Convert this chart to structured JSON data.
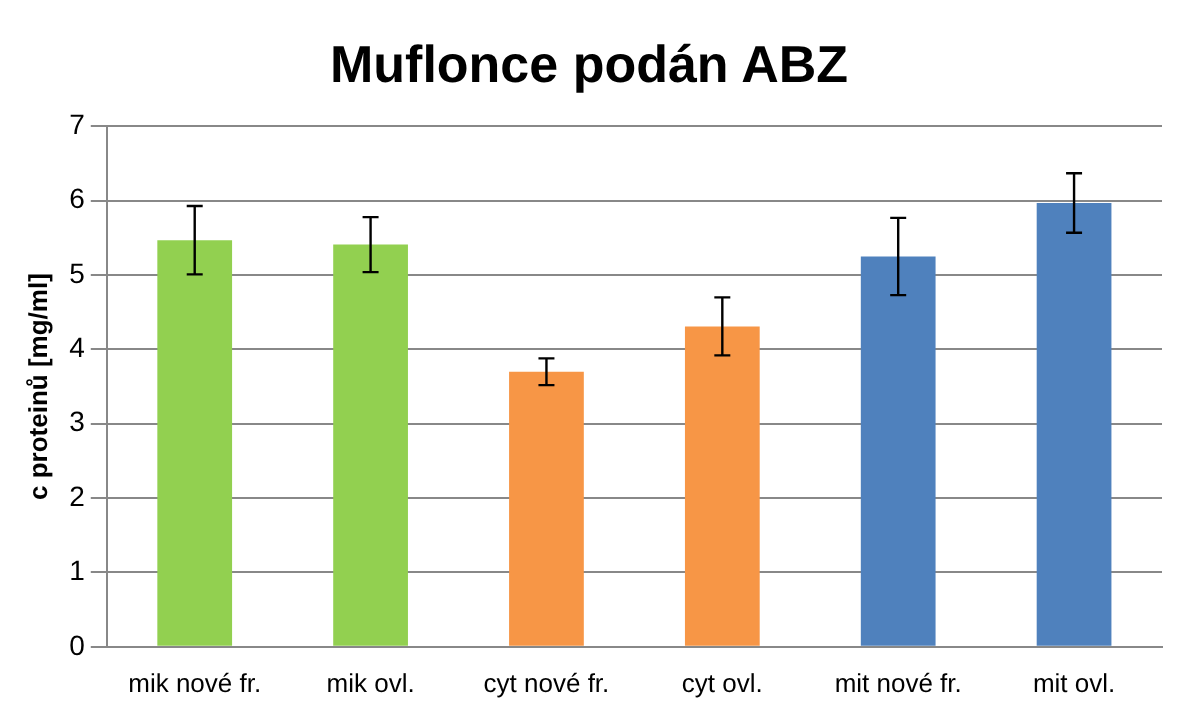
{
  "chart_data": {
    "type": "bar",
    "title": "Muflonce podán ABZ",
    "ylabel": "c proteinů [mg/ml]",
    "categories": [
      "mik nové fr.",
      "mik ovl.",
      "cyt nové fr.",
      "cyt ovl.",
      "mit nové fr.",
      "mit ovl."
    ],
    "values": [
      5.47,
      5.41,
      3.7,
      4.31,
      5.25,
      5.97
    ],
    "errors": [
      0.46,
      0.37,
      0.18,
      0.39,
      0.52,
      0.4
    ],
    "colors": [
      "#92d050",
      "#92d050",
      "#f79646",
      "#f79646",
      "#4f81bd",
      "#4f81bd"
    ],
    "ylim": [
      0,
      7
    ],
    "yticks": [
      0,
      1,
      2,
      3,
      4,
      5,
      6,
      7
    ],
    "grid": "y",
    "legend": false
  }
}
